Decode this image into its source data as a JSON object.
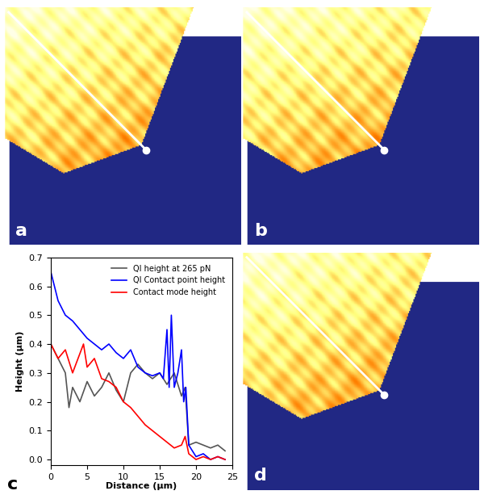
{
  "image_panels": [
    {
      "label": "a"
    },
    {
      "label": "b"
    },
    {
      "label": "d"
    }
  ],
  "chart_data": {
    "type": "line",
    "panel_label": "c",
    "x_label": "Distance (µm)",
    "y_label": "Height (µm)",
    "xlim": [
      0,
      25
    ],
    "xticks": [
      0,
      5,
      10,
      15,
      20,
      25
    ],
    "ylim": [
      -0.02,
      0.7
    ],
    "yticks": [
      0.0,
      0.1,
      0.2,
      0.3,
      0.4,
      0.5,
      0.6,
      0.7
    ],
    "legend": "upper right",
    "series": [
      {
        "name": "QI height at 265 pN",
        "color": "#555555",
        "x": [
          0,
          1,
          2,
          2.5,
          3,
          4,
          5,
          6,
          7,
          8,
          9,
          10,
          11,
          12,
          13,
          14,
          15,
          16,
          17,
          18,
          18.5,
          19,
          20,
          21,
          22,
          23,
          24
        ],
        "values": [
          0.4,
          0.35,
          0.3,
          0.18,
          0.25,
          0.2,
          0.27,
          0.22,
          0.25,
          0.3,
          0.24,
          0.2,
          0.3,
          0.33,
          0.3,
          0.28,
          0.3,
          0.26,
          0.3,
          0.22,
          0.25,
          0.05,
          0.06,
          0.05,
          0.04,
          0.05,
          0.03
        ]
      },
      {
        "name": "QI Contact point height",
        "color": "#0000ff",
        "x": [
          0,
          0.5,
          1,
          2,
          3,
          4,
          5,
          6,
          7,
          8,
          9,
          10,
          11,
          12,
          13,
          14,
          15,
          15.5,
          16,
          16.3,
          16.6,
          17,
          17.5,
          18,
          18.3,
          18.6,
          19,
          20,
          21,
          22,
          23,
          24
        ],
        "values": [
          0.65,
          0.6,
          0.55,
          0.5,
          0.48,
          0.45,
          0.42,
          0.4,
          0.38,
          0.4,
          0.37,
          0.35,
          0.38,
          0.32,
          0.3,
          0.29,
          0.3,
          0.28,
          0.45,
          0.25,
          0.5,
          0.25,
          0.3,
          0.38,
          0.2,
          0.25,
          0.05,
          0.01,
          0.02,
          0.0,
          0.01,
          0.0
        ]
      },
      {
        "name": "Contact mode height",
        "color": "#ff0000",
        "x": [
          0,
          1,
          2,
          3,
          4.5,
          5,
          6,
          7,
          8,
          9,
          10,
          11,
          12,
          13,
          14,
          15,
          16,
          17,
          18,
          18.5,
          19,
          20,
          21,
          22,
          23,
          24
        ],
        "values": [
          0.4,
          0.35,
          0.38,
          0.3,
          0.4,
          0.32,
          0.35,
          0.28,
          0.27,
          0.25,
          0.2,
          0.18,
          0.15,
          0.12,
          0.1,
          0.08,
          0.06,
          0.04,
          0.05,
          0.08,
          0.02,
          0.0,
          0.01,
          0.0,
          0.01,
          0.0
        ]
      }
    ]
  }
}
